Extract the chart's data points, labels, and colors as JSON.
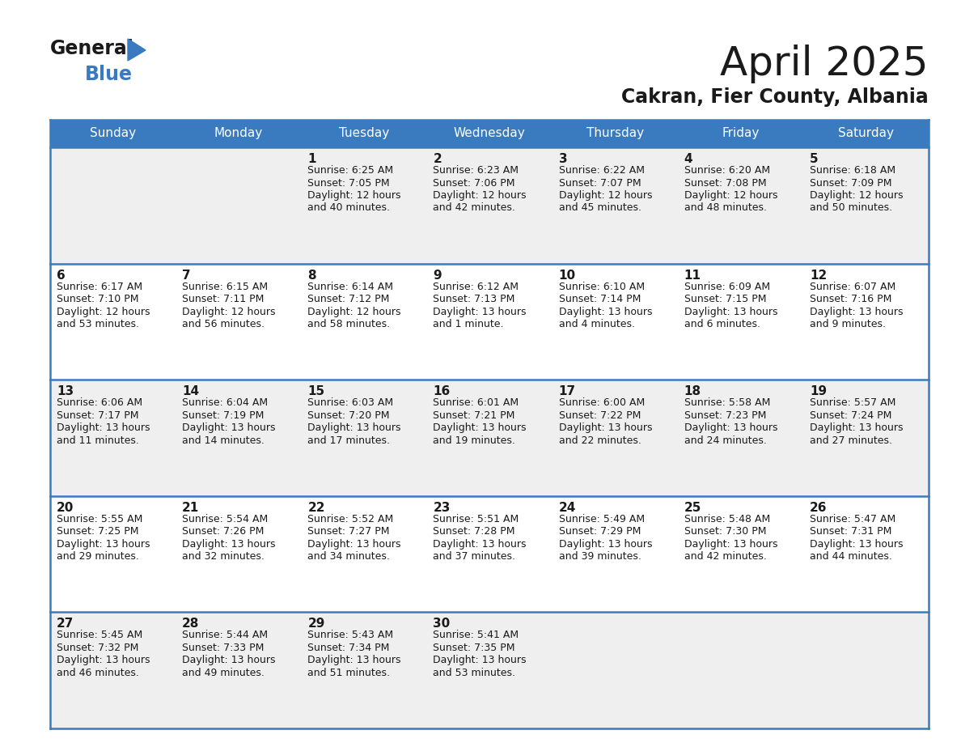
{
  "title": "April 2025",
  "subtitle": "Cakran, Fier County, Albania",
  "header_color": "#3a7bbf",
  "header_text_color": "#ffffff",
  "row0_bg": "#efefef",
  "row1_bg": "#ffffff",
  "border_color": "#3a7bbf",
  "text_color": "#1a1a1a",
  "day_names": [
    "Sunday",
    "Monday",
    "Tuesday",
    "Wednesday",
    "Thursday",
    "Friday",
    "Saturday"
  ],
  "days": [
    {
      "day": 1,
      "col": 2,
      "row": 0,
      "sunrise": "6:25 AM",
      "sunset": "7:05 PM",
      "daylight_h": "12 hours",
      "daylight_m": "and 40 minutes."
    },
    {
      "day": 2,
      "col": 3,
      "row": 0,
      "sunrise": "6:23 AM",
      "sunset": "7:06 PM",
      "daylight_h": "12 hours",
      "daylight_m": "and 42 minutes."
    },
    {
      "day": 3,
      "col": 4,
      "row": 0,
      "sunrise": "6:22 AM",
      "sunset": "7:07 PM",
      "daylight_h": "12 hours",
      "daylight_m": "and 45 minutes."
    },
    {
      "day": 4,
      "col": 5,
      "row": 0,
      "sunrise": "6:20 AM",
      "sunset": "7:08 PM",
      "daylight_h": "12 hours",
      "daylight_m": "and 48 minutes."
    },
    {
      "day": 5,
      "col": 6,
      "row": 0,
      "sunrise": "6:18 AM",
      "sunset": "7:09 PM",
      "daylight_h": "12 hours",
      "daylight_m": "and 50 minutes."
    },
    {
      "day": 6,
      "col": 0,
      "row": 1,
      "sunrise": "6:17 AM",
      "sunset": "7:10 PM",
      "daylight_h": "12 hours",
      "daylight_m": "and 53 minutes."
    },
    {
      "day": 7,
      "col": 1,
      "row": 1,
      "sunrise": "6:15 AM",
      "sunset": "7:11 PM",
      "daylight_h": "12 hours",
      "daylight_m": "and 56 minutes."
    },
    {
      "day": 8,
      "col": 2,
      "row": 1,
      "sunrise": "6:14 AM",
      "sunset": "7:12 PM",
      "daylight_h": "12 hours",
      "daylight_m": "and 58 minutes."
    },
    {
      "day": 9,
      "col": 3,
      "row": 1,
      "sunrise": "6:12 AM",
      "sunset": "7:13 PM",
      "daylight_h": "13 hours",
      "daylight_m": "and 1 minute."
    },
    {
      "day": 10,
      "col": 4,
      "row": 1,
      "sunrise": "6:10 AM",
      "sunset": "7:14 PM",
      "daylight_h": "13 hours",
      "daylight_m": "and 4 minutes."
    },
    {
      "day": 11,
      "col": 5,
      "row": 1,
      "sunrise": "6:09 AM",
      "sunset": "7:15 PM",
      "daylight_h": "13 hours",
      "daylight_m": "and 6 minutes."
    },
    {
      "day": 12,
      "col": 6,
      "row": 1,
      "sunrise": "6:07 AM",
      "sunset": "7:16 PM",
      "daylight_h": "13 hours",
      "daylight_m": "and 9 minutes."
    },
    {
      "day": 13,
      "col": 0,
      "row": 2,
      "sunrise": "6:06 AM",
      "sunset": "7:17 PM",
      "daylight_h": "13 hours",
      "daylight_m": "and 11 minutes."
    },
    {
      "day": 14,
      "col": 1,
      "row": 2,
      "sunrise": "6:04 AM",
      "sunset": "7:19 PM",
      "daylight_h": "13 hours",
      "daylight_m": "and 14 minutes."
    },
    {
      "day": 15,
      "col": 2,
      "row": 2,
      "sunrise": "6:03 AM",
      "sunset": "7:20 PM",
      "daylight_h": "13 hours",
      "daylight_m": "and 17 minutes."
    },
    {
      "day": 16,
      "col": 3,
      "row": 2,
      "sunrise": "6:01 AM",
      "sunset": "7:21 PM",
      "daylight_h": "13 hours",
      "daylight_m": "and 19 minutes."
    },
    {
      "day": 17,
      "col": 4,
      "row": 2,
      "sunrise": "6:00 AM",
      "sunset": "7:22 PM",
      "daylight_h": "13 hours",
      "daylight_m": "and 22 minutes."
    },
    {
      "day": 18,
      "col": 5,
      "row": 2,
      "sunrise": "5:58 AM",
      "sunset": "7:23 PM",
      "daylight_h": "13 hours",
      "daylight_m": "and 24 minutes."
    },
    {
      "day": 19,
      "col": 6,
      "row": 2,
      "sunrise": "5:57 AM",
      "sunset": "7:24 PM",
      "daylight_h": "13 hours",
      "daylight_m": "and 27 minutes."
    },
    {
      "day": 20,
      "col": 0,
      "row": 3,
      "sunrise": "5:55 AM",
      "sunset": "7:25 PM",
      "daylight_h": "13 hours",
      "daylight_m": "and 29 minutes."
    },
    {
      "day": 21,
      "col": 1,
      "row": 3,
      "sunrise": "5:54 AM",
      "sunset": "7:26 PM",
      "daylight_h": "13 hours",
      "daylight_m": "and 32 minutes."
    },
    {
      "day": 22,
      "col": 2,
      "row": 3,
      "sunrise": "5:52 AM",
      "sunset": "7:27 PM",
      "daylight_h": "13 hours",
      "daylight_m": "and 34 minutes."
    },
    {
      "day": 23,
      "col": 3,
      "row": 3,
      "sunrise": "5:51 AM",
      "sunset": "7:28 PM",
      "daylight_h": "13 hours",
      "daylight_m": "and 37 minutes."
    },
    {
      "day": 24,
      "col": 4,
      "row": 3,
      "sunrise": "5:49 AM",
      "sunset": "7:29 PM",
      "daylight_h": "13 hours",
      "daylight_m": "and 39 minutes."
    },
    {
      "day": 25,
      "col": 5,
      "row": 3,
      "sunrise": "5:48 AM",
      "sunset": "7:30 PM",
      "daylight_h": "13 hours",
      "daylight_m": "and 42 minutes."
    },
    {
      "day": 26,
      "col": 6,
      "row": 3,
      "sunrise": "5:47 AM",
      "sunset": "7:31 PM",
      "daylight_h": "13 hours",
      "daylight_m": "and 44 minutes."
    },
    {
      "day": 27,
      "col": 0,
      "row": 4,
      "sunrise": "5:45 AM",
      "sunset": "7:32 PM",
      "daylight_h": "13 hours",
      "daylight_m": "and 46 minutes."
    },
    {
      "day": 28,
      "col": 1,
      "row": 4,
      "sunrise": "5:44 AM",
      "sunset": "7:33 PM",
      "daylight_h": "13 hours",
      "daylight_m": "and 49 minutes."
    },
    {
      "day": 29,
      "col": 2,
      "row": 4,
      "sunrise": "5:43 AM",
      "sunset": "7:34 PM",
      "daylight_h": "13 hours",
      "daylight_m": "and 51 minutes."
    },
    {
      "day": 30,
      "col": 3,
      "row": 4,
      "sunrise": "5:41 AM",
      "sunset": "7:35 PM",
      "daylight_h": "13 hours",
      "daylight_m": "and 53 minutes."
    }
  ]
}
